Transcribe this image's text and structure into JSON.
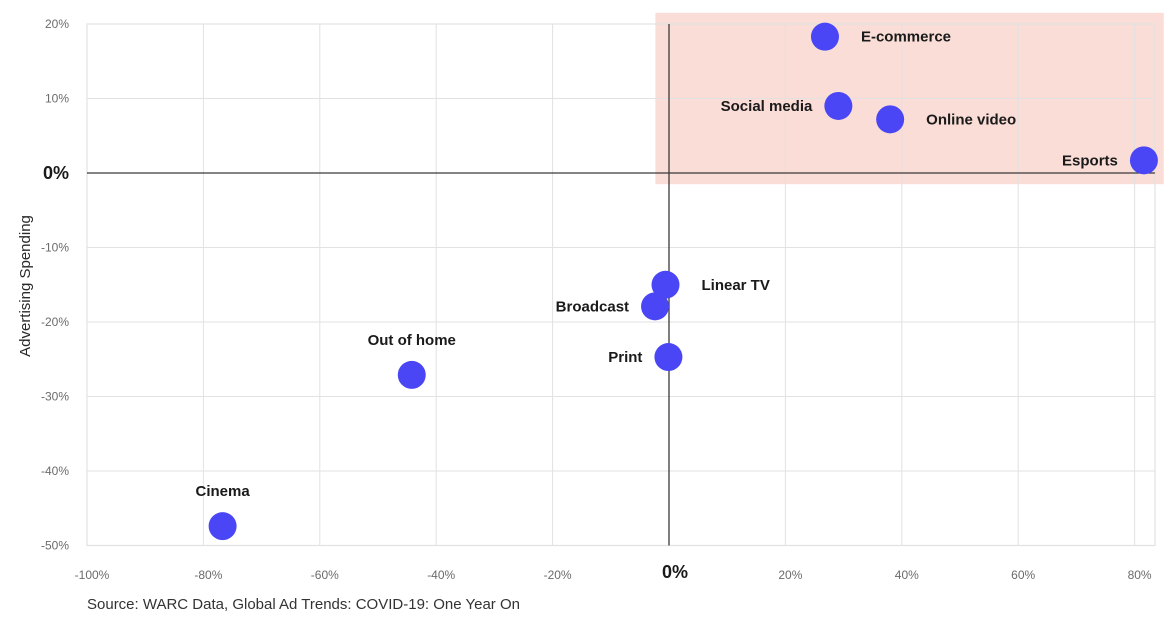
{
  "chart_data": {
    "type": "scatter",
    "title": "",
    "xlabel": "",
    "ylabel": "Advertising Spending",
    "xlim": [
      -100,
      83.5
    ],
    "ylim": [
      -50,
      20
    ],
    "x_ticks": [
      -100,
      -80,
      -60,
      -40,
      -20,
      0,
      20,
      40,
      60,
      80
    ],
    "x_tick_labels": [
      "-100%",
      "-80%",
      "-60%",
      "-40%",
      "-20%",
      "0%",
      "20%",
      "40%",
      "60%",
      "80%"
    ],
    "y_ticks": [
      20,
      10,
      0,
      -10,
      -20,
      -30,
      -40,
      -50
    ],
    "y_tick_labels": [
      "20%",
      "10%",
      "0%",
      "-10%",
      "-20%",
      "-30%",
      "-40%",
      "-50%"
    ],
    "grid": true,
    "highlight_region": {
      "x": [
        -2,
        85
      ],
      "y": [
        -1.5,
        21.5
      ],
      "color": "#f9ddd6"
    },
    "marker_color": "#4a46f5",
    "points": [
      {
        "label": "E-commerce",
        "x": 26.8,
        "y": 18.3,
        "label_position": "right"
      },
      {
        "label": "Social media",
        "x": 29.1,
        "y": 9.0,
        "label_position": "left"
      },
      {
        "label": "Online video",
        "x": 38.0,
        "y": 7.2,
        "label_position": "right"
      },
      {
        "label": "Esports",
        "x": 81.6,
        "y": 1.7,
        "label_position": "left"
      },
      {
        "label": "Linear TV",
        "x": -0.6,
        "y": -15.0,
        "label_position": "right"
      },
      {
        "label": "Broadcast",
        "x": -2.4,
        "y": -17.9,
        "label_position": "left"
      },
      {
        "label": "Print",
        "x": -0.1,
        "y": -24.7,
        "label_position": "left"
      },
      {
        "label": "Out of home",
        "x": -44.2,
        "y": -27.1,
        "label_position": "above"
      },
      {
        "label": "Cinema",
        "x": -76.7,
        "y": -47.4,
        "label_position": "above"
      }
    ],
    "source": "Source: WARC Data, Global Ad Trends: COVID-19: One Year On"
  }
}
